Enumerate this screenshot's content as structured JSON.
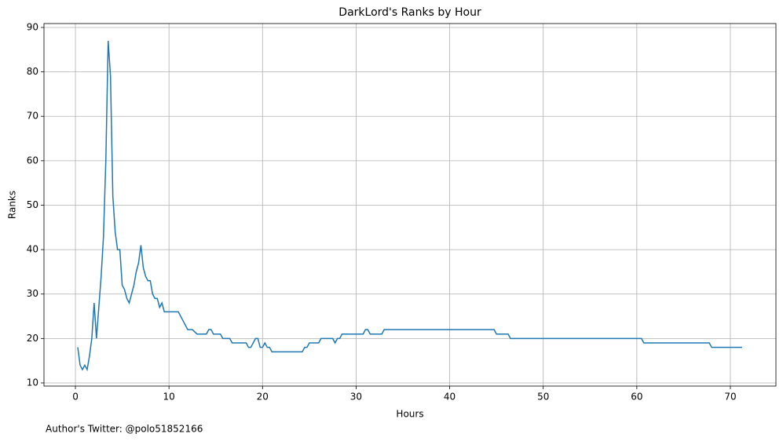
{
  "chart_data": {
    "type": "line",
    "title": "DarkLord's Ranks by Hour",
    "xlabel": "Hours",
    "ylabel": "Ranks",
    "annotation": "Author's Twitter: @polo51852166",
    "grid": true,
    "xlim": [
      -3.36,
      74.87
    ],
    "ylim": [
      9.29,
      90.88
    ],
    "xticks": [
      0,
      10,
      20,
      30,
      40,
      50,
      60,
      70
    ],
    "yticks": [
      10,
      20,
      30,
      40,
      50,
      60,
      70,
      80,
      90
    ],
    "x": [
      0.25,
      0.5,
      0.75,
      1.0,
      1.25,
      1.5,
      1.75,
      2.0,
      2.25,
      2.5,
      2.75,
      3.0,
      3.25,
      3.5,
      3.75,
      4.0,
      4.25,
      4.5,
      4.75,
      5.0,
      5.25,
      5.5,
      5.75,
      6.0,
      6.25,
      6.5,
      6.75,
      7.0,
      7.25,
      7.5,
      7.75,
      8.0,
      8.25,
      8.5,
      8.75,
      9.0,
      9.25,
      9.5,
      9.75,
      10.0,
      10.5,
      11.0,
      11.5,
      12.0,
      12.5,
      13.0,
      13.5,
      14.0,
      14.25,
      14.5,
      14.75,
      15.5,
      15.75,
      16.5,
      16.75,
      18.25,
      18.5,
      18.75,
      19.25,
      19.5,
      19.75,
      20.0,
      20.25,
      20.5,
      20.75,
      21.0,
      24.25,
      24.5,
      24.75,
      25.0,
      26.0,
      26.25,
      27.5,
      27.75,
      28.0,
      28.25,
      28.5,
      30.75,
      31.0,
      31.25,
      31.5,
      32.75,
      33.0,
      44.75,
      45.0,
      46.25,
      46.5,
      60.5,
      60.75,
      67.75,
      68.0,
      71.25
    ],
    "series": [
      {
        "name": "Ranks",
        "color": "#1f77b4",
        "values": [
          18,
          14,
          13,
          14,
          13,
          16,
          20,
          28,
          20,
          27,
          34,
          43,
          60,
          87,
          79,
          52,
          44,
          40,
          40,
          32,
          31,
          29,
          28,
          30,
          32,
          35,
          37,
          41,
          36,
          34,
          33,
          33,
          30,
          29,
          29,
          27,
          28,
          26,
          26,
          26,
          26,
          26,
          24,
          22,
          22,
          21,
          21,
          21,
          22,
          22,
          21,
          21,
          20,
          20,
          19,
          19,
          18,
          18,
          20,
          20,
          18,
          18,
          19,
          18,
          18,
          17,
          17,
          18,
          18,
          19,
          19,
          20,
          20,
          19,
          20,
          20,
          21,
          21,
          22,
          22,
          21,
          21,
          22,
          22,
          21,
          21,
          20,
          20,
          19,
          19,
          18,
          18
        ]
      }
    ]
  }
}
